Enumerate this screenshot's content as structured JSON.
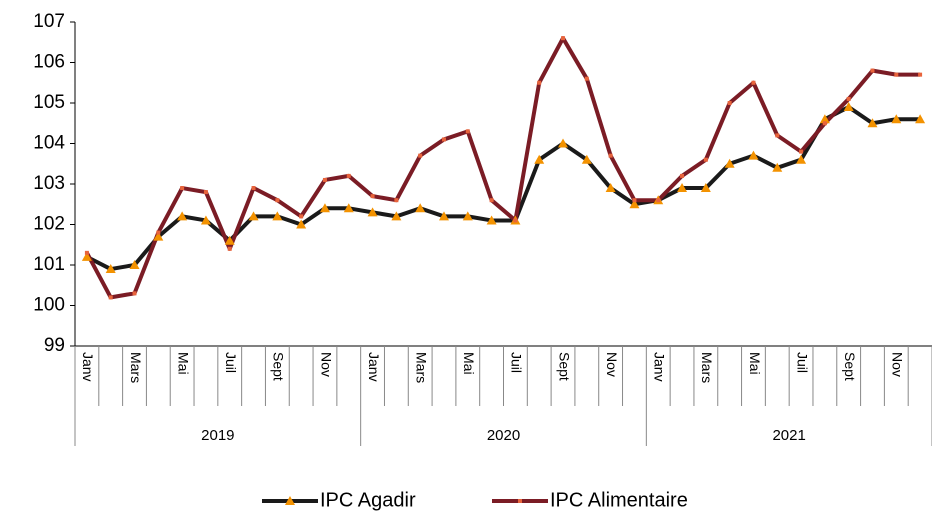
{
  "chart_data": {
    "type": "line",
    "categories": [
      "Janv",
      null,
      "Mars",
      null,
      "Mai",
      null,
      "Juil",
      null,
      "Sept",
      null,
      "Nov",
      null,
      "Janv",
      null,
      "Mars",
      null,
      "Mai",
      null,
      "Juil",
      null,
      "Sept",
      null,
      "Nov",
      null,
      "Janv",
      null,
      "Mars",
      null,
      "Mai",
      null,
      "Juil",
      null,
      "Sept",
      null,
      "Nov",
      null
    ],
    "year_groups": [
      "2019",
      "2020",
      "2021"
    ],
    "series": [
      {
        "name": "IPC Agadir",
        "color": "#1a1a1a",
        "marker_color": "#f39200",
        "values": [
          101.2,
          100.9,
          101.0,
          101.7,
          102.2,
          102.1,
          101.6,
          102.2,
          102.2,
          102.0,
          102.4,
          102.4,
          102.3,
          102.2,
          102.4,
          102.2,
          102.2,
          102.1,
          102.1,
          103.6,
          104.0,
          103.6,
          102.9,
          102.5,
          102.6,
          102.9,
          102.9,
          103.5,
          103.7,
          103.4,
          103.6,
          104.6,
          104.9,
          104.5,
          104.6,
          104.6
        ]
      },
      {
        "name": "IPC Alimentaire",
        "color": "#7b1c25",
        "marker_color": "#e8643c",
        "values": [
          101.3,
          100.2,
          100.3,
          101.8,
          102.9,
          102.8,
          101.4,
          102.9,
          102.6,
          102.2,
          103.1,
          103.2,
          102.7,
          102.6,
          103.7,
          104.1,
          104.3,
          102.6,
          102.1,
          105.5,
          106.6,
          105.6,
          103.7,
          102.6,
          102.6,
          103.2,
          103.6,
          105.0,
          105.5,
          104.2,
          103.8,
          104.5,
          105.1,
          105.8,
          105.7,
          105.7
        ]
      }
    ],
    "ylim": [
      99,
      107
    ],
    "yticks": [
      99,
      100,
      101,
      102,
      103,
      104,
      105,
      106,
      107
    ],
    "grid": false,
    "legend": "bottom"
  }
}
